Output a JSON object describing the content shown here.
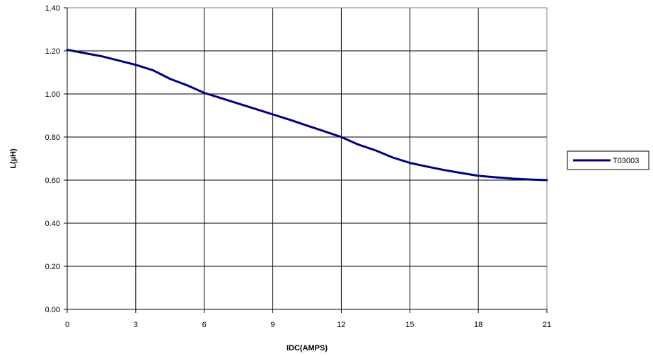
{
  "chart_data": {
    "type": "line",
    "title": "",
    "xlabel": "IDC(AMPS)",
    "ylabel": "L(µH)",
    "xlim": [
      0,
      21
    ],
    "ylim": [
      0,
      1.4
    ],
    "x_ticks": [
      0,
      3,
      6,
      9,
      12,
      15,
      18,
      21
    ],
    "x_tick_labels": [
      "0",
      "3",
      "6",
      "9",
      "12",
      "15",
      "18",
      "21"
    ],
    "y_ticks": [
      0,
      0.2,
      0.4,
      0.6,
      0.8,
      1.0,
      1.2,
      1.4
    ],
    "y_tick_labels": [
      "0.00",
      "0.20",
      "0.40",
      "0.60",
      "0.80",
      "1.00",
      "1.20",
      "1.40"
    ],
    "grid": true,
    "legend_position": "right",
    "series": [
      {
        "name": "T03003",
        "color": "#000080",
        "x": [
          0,
          0.75,
          1.5,
          2.25,
          3,
          3.75,
          4.5,
          5.25,
          6,
          6.75,
          7.5,
          8.25,
          9,
          9.75,
          10.5,
          11.25,
          12,
          12.75,
          13.5,
          14.25,
          15,
          15.75,
          16.5,
          17.25,
          18,
          18.75,
          19.5,
          20.25,
          21
        ],
        "y": [
          1.205,
          1.19,
          1.175,
          1.155,
          1.135,
          1.11,
          1.07,
          1.04,
          1.005,
          0.98,
          0.955,
          0.93,
          0.905,
          0.88,
          0.853,
          0.827,
          0.8,
          0.765,
          0.738,
          0.705,
          0.68,
          0.663,
          0.647,
          0.633,
          0.62,
          0.613,
          0.607,
          0.603,
          0.6
        ]
      }
    ]
  }
}
